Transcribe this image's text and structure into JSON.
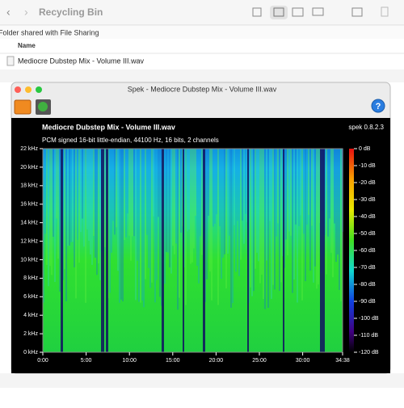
{
  "finder": {
    "title": "Recycling Bin",
    "banner": "Folder shared with File Sharing",
    "column": "Name",
    "file": "Mediocre Dubstep Mix - Volume III.wav"
  },
  "window": {
    "title": "Spek - Mediocre Dubstep Mix - Volume III.wav",
    "heading": "Mediocre Dubstep Mix - Volume III.wav",
    "version": "spek 0.8.2.3",
    "info": "PCM signed 16-bit little-endian, 44100 Hz, 16 bits, 2 channels",
    "yticks": [
      "22 kHz",
      "20 kHz",
      "18 kHz",
      "16 kHz",
      "14 kHz",
      "12 kHz",
      "10 kHz",
      "8 kHz",
      "6 kHz",
      "4 kHz",
      "2 kHz",
      "0 kHz"
    ],
    "xticks": [
      "0:00",
      "5:00",
      "10:00",
      "15:00",
      "20:00",
      "25:00",
      "30:00",
      "34:38"
    ],
    "colorbar": [
      "0 dB",
      "-10 dB",
      "-20 dB",
      "-30 dB",
      "-40 dB",
      "-50 dB",
      "-60 dB",
      "-70 dB",
      "-80 dB",
      "-90 dB",
      "-100 dB",
      "-110 dB",
      "-120 dB"
    ]
  }
}
